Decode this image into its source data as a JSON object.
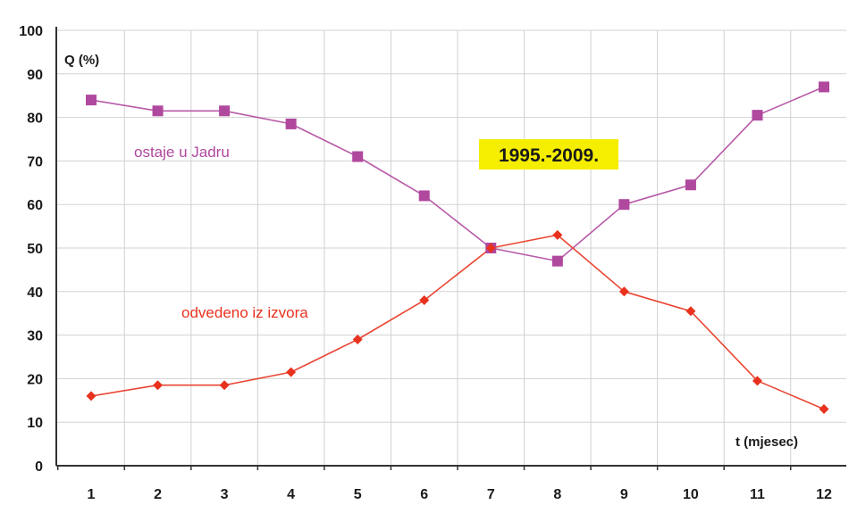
{
  "chart_data": {
    "type": "line",
    "ylabel": "Q (%)",
    "xlabel": "t (mjesec)",
    "x": [
      1,
      2,
      3,
      4,
      5,
      6,
      7,
      8,
      9,
      10,
      11,
      12
    ],
    "xticks": [
      "1",
      "2",
      "3",
      "4",
      "5",
      "6",
      "7",
      "8",
      "9",
      "10",
      "11",
      "12"
    ],
    "ylim": [
      0,
      100
    ],
    "yticks": [
      "0",
      "10",
      "20",
      "30",
      "40",
      "50",
      "60",
      "70",
      "80",
      "90",
      "100"
    ],
    "grid": true,
    "annotation": "1995.-2009.",
    "series": [
      {
        "name": "ostaje u Jadru",
        "color": "#b0489e",
        "marker": "square",
        "values": [
          84,
          81.5,
          81.5,
          78.5,
          71,
          62,
          50,
          47,
          60,
          64.5,
          80.5,
          87
        ]
      },
      {
        "name": "odvedeno iz izvora",
        "color": "#e8321e",
        "marker": "diamond",
        "values": [
          16,
          18.5,
          18.5,
          21.5,
          29,
          38,
          50,
          53,
          40,
          35.5,
          19.5,
          13
        ]
      }
    ],
    "colors": {
      "annotation_background": "#f5ee00",
      "grid": "#d2d2d2",
      "axis": "#333333"
    }
  }
}
